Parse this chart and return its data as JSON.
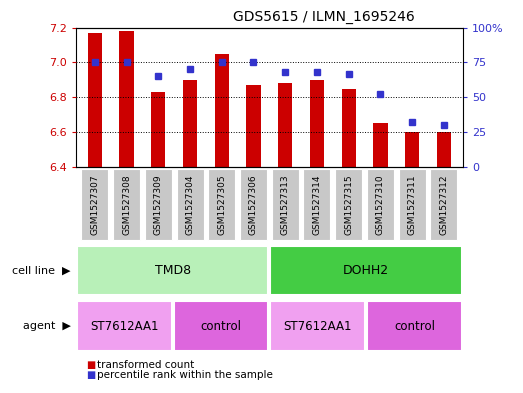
{
  "title": "GDS5615 / ILMN_1695246",
  "samples": [
    "GSM1527307",
    "GSM1527308",
    "GSM1527309",
    "GSM1527304",
    "GSM1527305",
    "GSM1527306",
    "GSM1527313",
    "GSM1527314",
    "GSM1527315",
    "GSM1527310",
    "GSM1527311",
    "GSM1527312"
  ],
  "transformed_counts": [
    7.17,
    7.18,
    6.83,
    6.9,
    7.05,
    6.87,
    6.88,
    6.9,
    6.85,
    6.65,
    6.6,
    6.6
  ],
  "percentile_ranks": [
    75,
    75,
    65,
    70,
    75,
    75,
    68,
    68,
    67,
    52,
    32,
    30
  ],
  "ylim_left": [
    6.4,
    7.2
  ],
  "ylim_right": [
    0,
    100
  ],
  "yticks_left": [
    6.4,
    6.6,
    6.8,
    7.0,
    7.2
  ],
  "yticks_right": [
    0,
    25,
    50,
    75,
    100
  ],
  "ytick_labels_right": [
    "0",
    "25",
    "50",
    "75",
    "100%"
  ],
  "bar_color": "#cc0000",
  "dot_color": "#3333cc",
  "bar_bottom": 6.4,
  "cell_line_groups": [
    {
      "label": "TMD8",
      "start": 0,
      "end": 5,
      "color": "#b8f0b8"
    },
    {
      "label": "DOHH2",
      "start": 6,
      "end": 11,
      "color": "#44cc44"
    }
  ],
  "agent_groups": [
    {
      "label": "ST7612AA1",
      "start": 0,
      "end": 2,
      "color": "#f0a0f0"
    },
    {
      "label": "control",
      "start": 3,
      "end": 5,
      "color": "#dd66dd"
    },
    {
      "label": "ST7612AA1",
      "start": 6,
      "end": 8,
      "color": "#f0a0f0"
    },
    {
      "label": "control",
      "start": 9,
      "end": 11,
      "color": "#dd66dd"
    }
  ],
  "legend_items": [
    {
      "label": "transformed count",
      "color": "#cc0000"
    },
    {
      "label": "percentile rank within the sample",
      "color": "#3333cc"
    }
  ],
  "tick_bg_color": "#c8c8c8",
  "cell_line_row_label": "cell line",
  "agent_row_label": "agent",
  "bar_width": 0.45
}
